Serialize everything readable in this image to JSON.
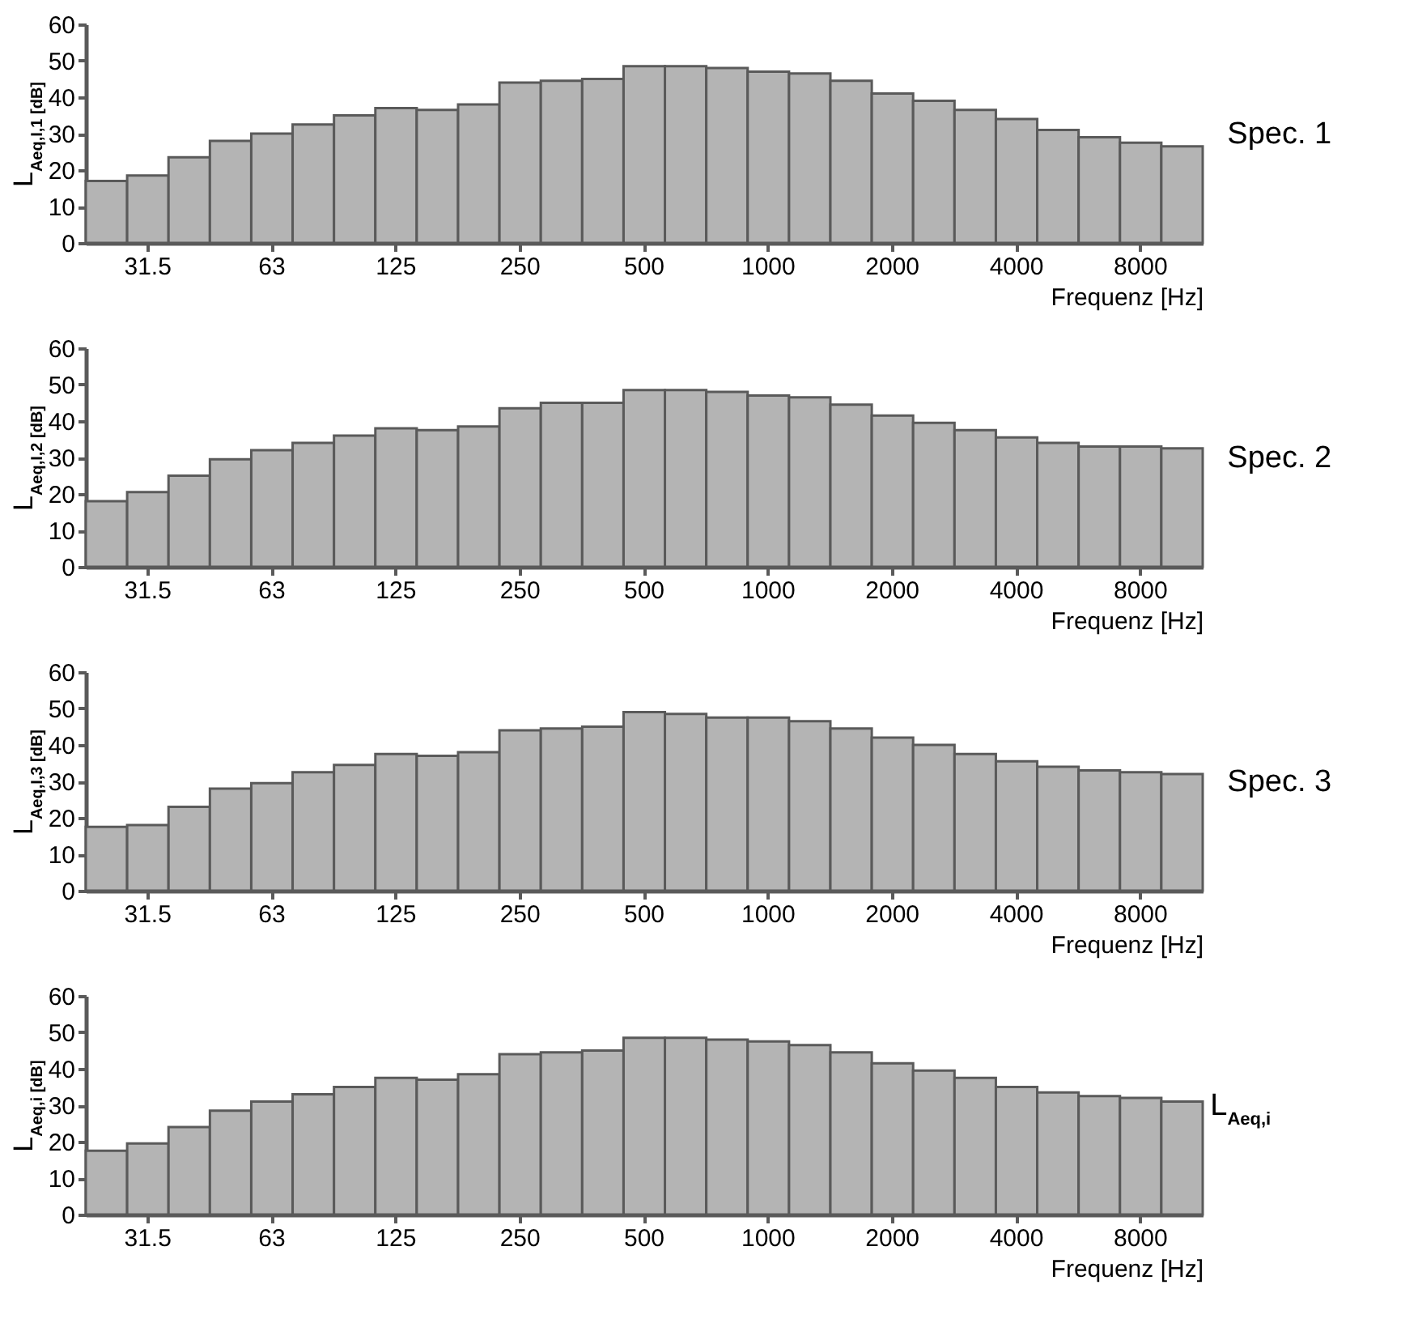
{
  "chart_data": [
    {
      "type": "bar",
      "annotations": [
        "Spec. 1"
      ],
      "xlabel": "Frequenz [Hz]",
      "ylabel": "L$_{Aeq,I,1 [dB]}$",
      "ylim": [
        0,
        60
      ],
      "yticks": [
        0,
        10,
        20,
        30,
        40,
        50,
        60
      ],
      "grid": false,
      "categories": [
        null,
        "31.5",
        null,
        null,
        "63",
        null,
        null,
        "125",
        null,
        null,
        "250",
        null,
        null,
        "500",
        null,
        null,
        "1000",
        null,
        null,
        "2000",
        null,
        null,
        "4000",
        null,
        null,
        "8000",
        null
      ],
      "series": [
        {
          "color": "#b4b4b4",
          "values": [
            17,
            18.5,
            23.5,
            28,
            30,
            32.5,
            35,
            37,
            36.5,
            38,
            44,
            44.5,
            45,
            48.5,
            48.5,
            48,
            47,
            46.5,
            44.5,
            41,
            39,
            36.5,
            34,
            31,
            29,
            27.5,
            26.5
          ]
        }
      ]
    },
    {
      "type": "bar",
      "annotations": [
        "Spec. 2"
      ],
      "xlabel": "Frequenz [Hz]",
      "ylabel": "L$_{Aeq,I,2 [dB]}$",
      "ylim": [
        0,
        60
      ],
      "yticks": [
        0,
        10,
        20,
        30,
        40,
        50,
        60
      ],
      "grid": false,
      "categories": [
        null,
        "31.5",
        null,
        null,
        "63",
        null,
        null,
        "125",
        null,
        null,
        "250",
        null,
        null,
        "500",
        null,
        null,
        "1000",
        null,
        null,
        "2000",
        null,
        null,
        "4000",
        null,
        null,
        "8000",
        null
      ],
      "series": [
        {
          "color": "#b4b4b4",
          "values": [
            18,
            20.5,
            25,
            29.5,
            32,
            34,
            36,
            38,
            37.5,
            38.5,
            43.5,
            45,
            45,
            48.5,
            48.5,
            48,
            47,
            46.5,
            44.5,
            41.5,
            39.5,
            37.5,
            35.5,
            34,
            33,
            33,
            32.5
          ]
        }
      ]
    },
    {
      "type": "bar",
      "annotations": [
        "Spec. 3"
      ],
      "xlabel": "Frequenz [Hz]",
      "ylabel": "L$_{Aeq,I,3 [dB]}$",
      "ylim": [
        0,
        60
      ],
      "yticks": [
        0,
        10,
        20,
        30,
        40,
        50,
        60
      ],
      "grid": false,
      "categories": [
        null,
        "31.5",
        null,
        null,
        "63",
        null,
        null,
        "125",
        null,
        null,
        "250",
        null,
        null,
        "500",
        null,
        null,
        "1000",
        null,
        null,
        "2000",
        null,
        null,
        "4000",
        null,
        null,
        "8000",
        null
      ],
      "series": [
        {
          "color": "#b4b4b4",
          "values": [
            17.5,
            18,
            23,
            28,
            29.5,
            32.5,
            34.5,
            37.5,
            37,
            38,
            44,
            44.5,
            45,
            49,
            48.5,
            47.5,
            47.5,
            46.5,
            44.5,
            42,
            40,
            37.5,
            35.5,
            34,
            33,
            32.5,
            32
          ]
        }
      ]
    },
    {
      "type": "bar",
      "annotations": [
        "L$_{Aeq,i}$"
      ],
      "xlabel": "Frequenz [Hz]",
      "ylabel": "L$_{Aeq,i [dB]}$",
      "ylim": [
        0,
        60
      ],
      "yticks": [
        0,
        10,
        20,
        30,
        40,
        50,
        60
      ],
      "grid": false,
      "categories": [
        null,
        "31.5",
        null,
        null,
        "63",
        null,
        null,
        "125",
        null,
        null,
        "250",
        null,
        null,
        "500",
        null,
        null,
        "1000",
        null,
        null,
        "2000",
        null,
        null,
        "4000",
        null,
        null,
        "8000",
        null
      ],
      "series": [
        {
          "color": "#b4b4b4",
          "values": [
            17.5,
            19.5,
            24,
            28.5,
            31,
            33,
            35,
            37.5,
            37,
            38.5,
            44,
            44.5,
            45,
            48.5,
            48.5,
            48,
            47.5,
            46.5,
            44.5,
            41.5,
            39.5,
            37.5,
            35,
            33.5,
            32.5,
            32,
            31
          ]
        }
      ]
    }
  ]
}
